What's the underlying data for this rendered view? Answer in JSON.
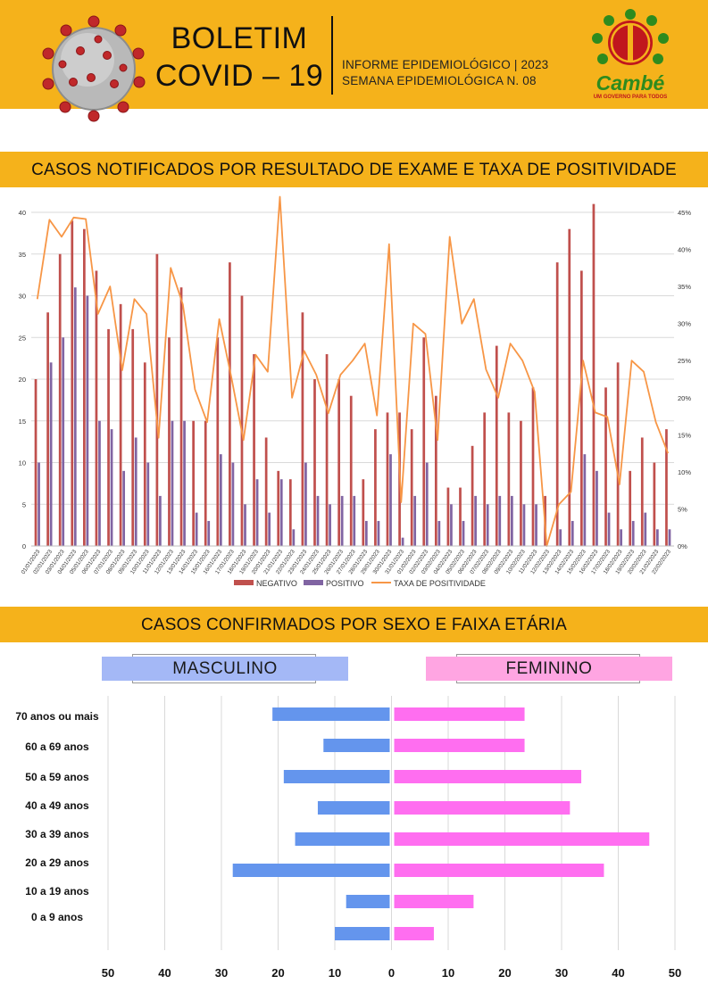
{
  "header": {
    "title_line1": "BOLETIM",
    "title_line2": "COVID – 19",
    "info_line1": "INFORME EPIDEMIOLÓGICO | 2023",
    "info_line2": "SEMANA EPIDEMIOLÓGICA  N. 08",
    "logo_name": "Cambé",
    "logo_tagline": "UM GOVERNO PARA TODOS",
    "colors": {
      "band": "#f5b21b",
      "logo_green": "#2e8b1e",
      "logo_red": "#c0171d"
    }
  },
  "section1": {
    "title": "CASOS NOTIFICADOS POR RESULTADO DE EXAME E TAXA DE POSITIVIDADE"
  },
  "section2": {
    "title": "CASOS CONFIRMADOS POR SEXO E FAIXA ETÁRIA",
    "male_label": "MASCULINO",
    "female_label": "FEMININO"
  },
  "chart_data": [
    {
      "type": "bar",
      "title": "CASOS NOTIFICADOS POR RESULTADO DE EXAME E TAXA DE POSITIVIDADE",
      "categories": [
        "01/01/2023",
        "02/01/2023",
        "03/01/2023",
        "04/01/2023",
        "05/01/2023",
        "06/01/2023",
        "07/01/2023",
        "08/01/2023",
        "09/01/2023",
        "10/01/2023",
        "11/01/2023",
        "12/01/2023",
        "13/01/2023",
        "14/01/2023",
        "15/01/2023",
        "16/01/2023",
        "17/01/2023",
        "18/01/2023",
        "19/01/2023",
        "20/01/2023",
        "21/01/2023",
        "22/01/2023",
        "23/01/2023",
        "24/01/2023",
        "25/01/2023",
        "26/01/2023",
        "27/01/2023",
        "28/01/2023",
        "29/01/2023",
        "30/01/2023",
        "31/01/2023",
        "01/02/2023",
        "02/02/2023",
        "03/02/2023",
        "04/02/2023",
        "05/02/2023",
        "06/02/2023",
        "07/02/2023",
        "08/02/2023",
        "09/02/2023",
        "10/02/2023",
        "11/02/2023",
        "12/02/2023",
        "13/02/2023",
        "14/02/2023",
        "15/02/2023",
        "16/02/2023",
        "17/02/2023",
        "18/02/2023",
        "19/02/2023",
        "20/02/2023",
        "21/02/2023",
        "22/02/2023"
      ],
      "series": [
        {
          "name": "NEGATIVO",
          "color": "#c0504d",
          "axis": "left",
          "values": [
            20,
            28,
            35,
            39,
            38,
            33,
            26,
            29,
            26,
            22,
            35,
            25,
            31,
            15,
            15,
            25,
            34,
            30,
            23,
            13,
            9,
            8,
            28,
            20,
            23,
            20,
            18,
            8,
            14,
            16,
            16,
            14,
            25,
            18,
            7,
            7,
            12,
            16,
            24,
            16,
            15,
            19,
            6,
            34,
            38,
            33,
            41,
            19,
            22,
            9,
            13,
            10,
            14
          ]
        },
        {
          "name": "POSITIVO",
          "color": "#8064a2",
          "axis": "left",
          "values": [
            10,
            22,
            25,
            31,
            30,
            15,
            14,
            9,
            13,
            10,
            6,
            15,
            15,
            4,
            3,
            11,
            10,
            5,
            8,
            4,
            8,
            2,
            10,
            6,
            5,
            6,
            6,
            3,
            3,
            11,
            1,
            6,
            10,
            3,
            5,
            3,
            6,
            5,
            6,
            6,
            5,
            5,
            0,
            2,
            3,
            11,
            9,
            4,
            2,
            3,
            4,
            2,
            2
          ]
        },
        {
          "name": "TAXA DE POSITIVIDADE",
          "color": "#f79646",
          "axis": "right",
          "type": "line",
          "values": [
            33.3,
            44.0,
            41.7,
            44.3,
            44.1,
            31.3,
            35.0,
            23.7,
            33.3,
            31.3,
            14.6,
            37.5,
            32.6,
            21.1,
            16.7,
            30.6,
            22.7,
            14.3,
            25.8,
            23.5,
            47.1,
            20.0,
            26.3,
            23.1,
            17.9,
            23.1,
            25.0,
            27.3,
            17.6,
            40.7,
            5.9,
            30.0,
            28.6,
            14.3,
            41.7,
            30.0,
            33.3,
            23.8,
            20.0,
            27.3,
            25.0,
            20.8,
            0.0,
            5.6,
            7.3,
            25.0,
            18.0,
            17.4,
            8.3,
            25.0,
            23.5,
            16.7,
            12.5
          ]
        }
      ],
      "y_left": {
        "ylim": [
          0,
          40
        ],
        "ticks": [
          0,
          5,
          10,
          15,
          20,
          25,
          30,
          35,
          40
        ]
      },
      "y_right": {
        "ylim": [
          0,
          45
        ],
        "ticks": [
          "0%",
          "5%",
          "10%",
          "15%",
          "20%",
          "25%",
          "30%",
          "35%",
          "40%",
          "45%"
        ]
      },
      "grid": true,
      "legend": "bottom"
    },
    {
      "type": "bar",
      "orientation": "horizontal",
      "title": "CASOS CONFIRMADOS POR SEXO E FAIXA ETÁRIA",
      "categories": [
        "70 anos ou mais",
        "60 a 69 anos",
        "50 a 59 anos",
        "40 a 49 anos",
        "30 a 39 anos",
        "20 a 29 anos",
        "10 a 19 anos",
        "0 a 9 anos"
      ],
      "series": [
        {
          "name": "MASCULINO",
          "color": "#6495ed",
          "values": [
            21,
            12,
            19,
            13,
            17,
            28,
            8,
            10
          ]
        },
        {
          "name": "FEMININO",
          "color": "#ff6ef0",
          "values": [
            23,
            23,
            33,
            31,
            45,
            37,
            14,
            7
          ]
        }
      ],
      "x_ticks": [
        "50",
        "40",
        "30",
        "20",
        "10",
        "0",
        "10",
        "20",
        "30",
        "40",
        "50"
      ],
      "xlim": [
        -50,
        50
      ],
      "grid": true
    }
  ]
}
